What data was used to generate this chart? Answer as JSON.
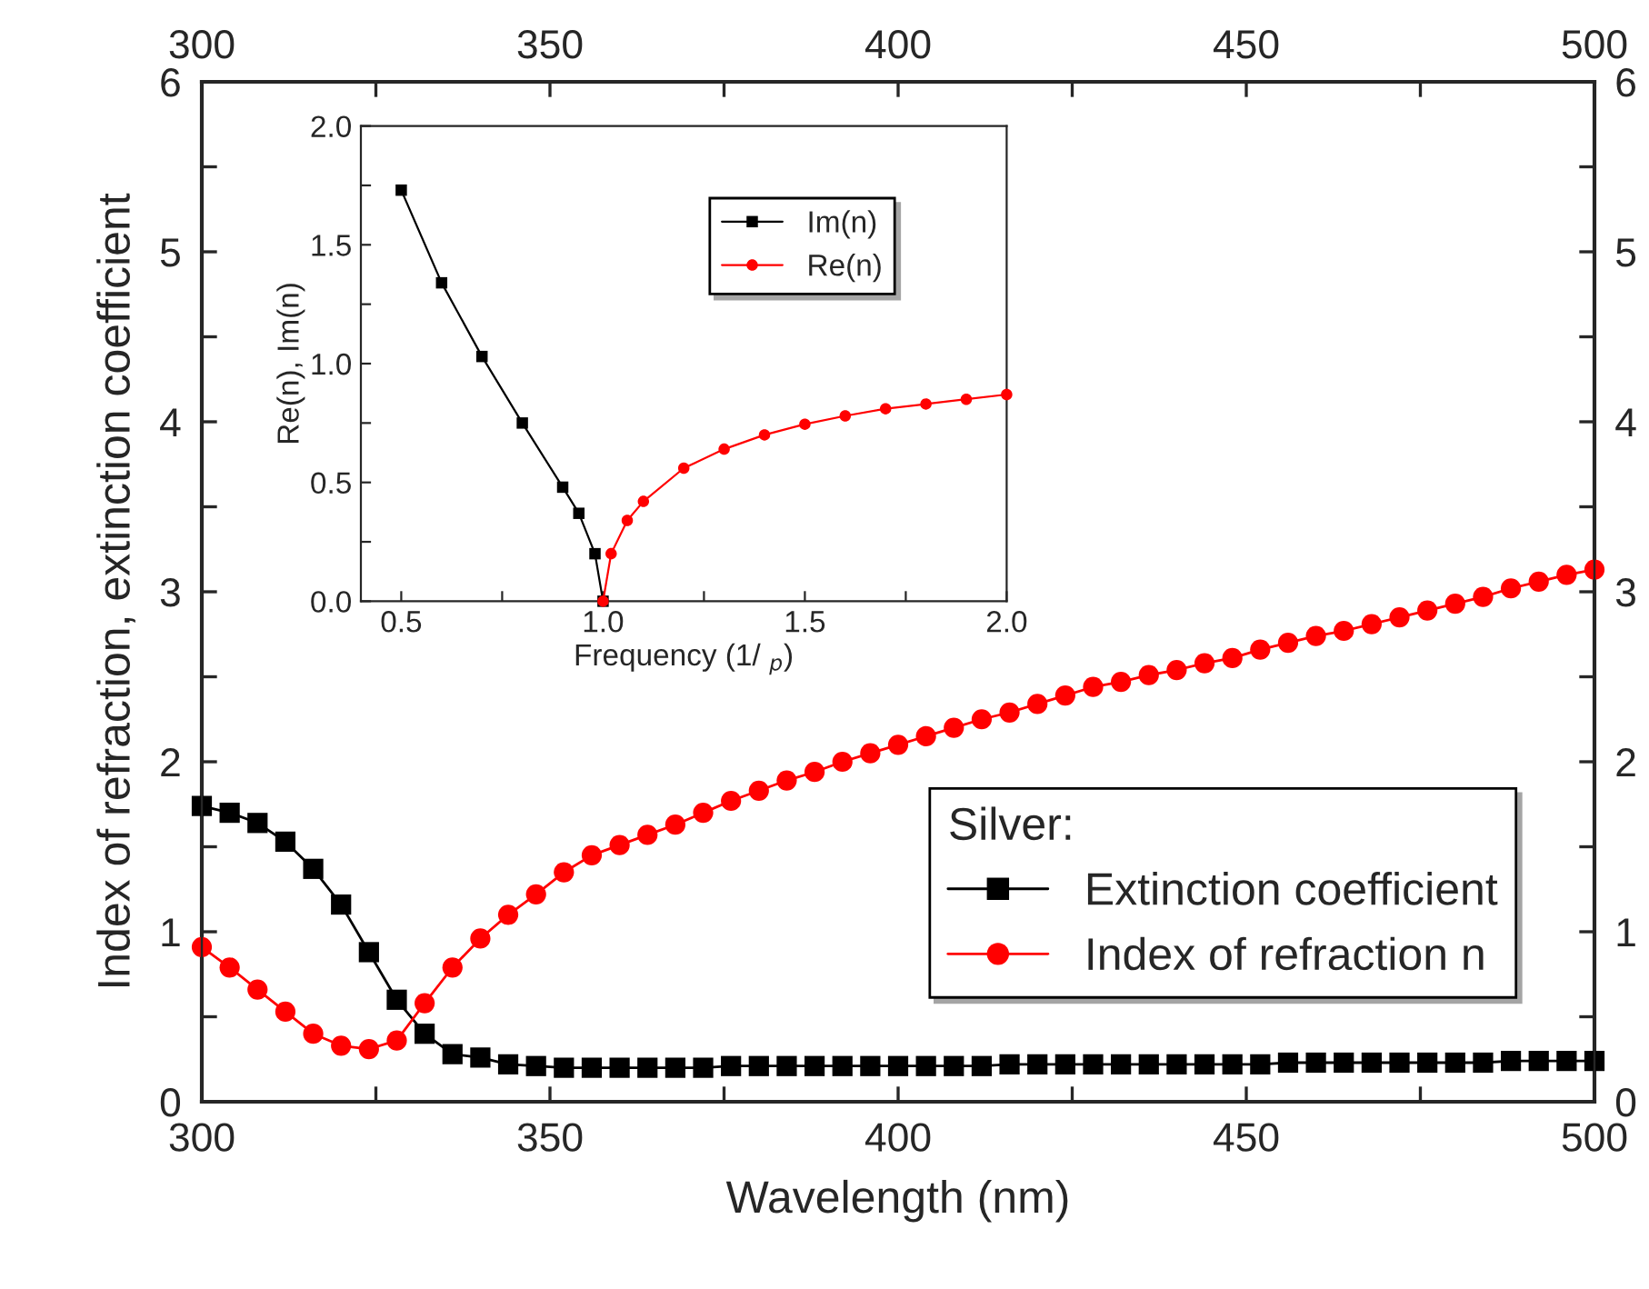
{
  "chart_data": [
    {
      "type": "line",
      "xlabel": "Wavelength (nm)",
      "ylabel": "Index of refraction, extinction coefficient",
      "legend_title": "Silver:",
      "legend": "bottom right",
      "grid": false,
      "x": [
        300,
        304,
        308,
        312,
        316,
        320,
        324,
        328,
        332,
        336,
        340,
        344,
        348,
        352,
        356,
        360,
        364,
        368,
        372,
        376,
        380,
        384,
        388,
        392,
        396,
        400,
        404,
        408,
        412,
        416,
        420,
        424,
        428,
        432,
        436,
        440,
        444,
        448,
        452,
        456,
        460,
        464,
        468,
        472,
        476,
        480,
        484,
        488,
        492,
        496,
        500
      ],
      "series": [
        {
          "name": "Extinction coefficient",
          "color": "#000000",
          "marker": "square",
          "values": [
            1.74,
            1.7,
            1.64,
            1.53,
            1.37,
            1.16,
            0.88,
            0.6,
            0.4,
            0.28,
            0.26,
            0.22,
            0.21,
            0.2,
            0.2,
            0.2,
            0.2,
            0.2,
            0.2,
            0.21,
            0.21,
            0.21,
            0.21,
            0.21,
            0.21,
            0.21,
            0.21,
            0.21,
            0.21,
            0.22,
            0.22,
            0.22,
            0.22,
            0.22,
            0.22,
            0.22,
            0.22,
            0.22,
            0.22,
            0.23,
            0.23,
            0.23,
            0.23,
            0.23,
            0.23,
            0.23,
            0.23,
            0.24,
            0.24,
            0.24,
            0.24
          ]
        },
        {
          "name": "Index of refraction n",
          "color": "#ff0000",
          "marker": "circle",
          "values": [
            0.91,
            0.79,
            0.66,
            0.53,
            0.4,
            0.33,
            0.31,
            0.36,
            0.58,
            0.79,
            0.96,
            1.1,
            1.22,
            1.35,
            1.45,
            1.51,
            1.57,
            1.63,
            1.7,
            1.77,
            1.83,
            1.89,
            1.94,
            2.0,
            2.05,
            2.1,
            2.15,
            2.2,
            2.25,
            2.29,
            2.34,
            2.39,
            2.44,
            2.47,
            2.51,
            2.54,
            2.58,
            2.61,
            2.66,
            2.7,
            2.74,
            2.77,
            2.81,
            2.85,
            2.89,
            2.93,
            2.97,
            3.02,
            3.06,
            3.1,
            3.13
          ]
        }
      ],
      "xlim": [
        300,
        500
      ],
      "xticks": [
        300,
        {
          "value": 325,
          "label": null
        },
        350,
        {
          "value": 375,
          "label": null
        },
        400,
        {
          "value": 425,
          "label": null
        },
        450,
        {
          "value": 475,
          "label": null
        },
        500
      ],
      "x2lim": [
        300,
        500
      ],
      "x2ticks": [
        300,
        {
          "value": 325,
          "label": null
        },
        350,
        {
          "value": 375,
          "label": null
        },
        400,
        {
          "value": 425,
          "label": null
        },
        450,
        {
          "value": 475,
          "label": null
        },
        500
      ],
      "ylim": [
        0,
        6
      ],
      "yticks": [
        0,
        {
          "value": 0.5,
          "label": null
        },
        1,
        {
          "value": 1.5,
          "label": null
        },
        2,
        {
          "value": 2.5,
          "label": null
        },
        3,
        {
          "value": 3.5,
          "label": null
        },
        4,
        {
          "value": 4.5,
          "label": null
        },
        5,
        {
          "value": 5.5,
          "label": null
        },
        6
      ],
      "y2lim": [
        0,
        6
      ],
      "y2ticks": [
        0,
        {
          "value": 0.5,
          "label": null
        },
        1,
        {
          "value": 1.5,
          "label": null
        },
        2,
        {
          "value": 2.5,
          "label": null
        },
        3,
        {
          "value": 3.5,
          "label": null
        },
        4,
        {
          "value": 4.5,
          "label": null
        },
        5,
        {
          "value": 5.5,
          "label": null
        },
        6
      ]
    },
    {
      "type": "line",
      "xlabel": "Frequency (1/ $_{p}$)",
      "ylabel": "Re(n), Im(n)",
      "legend": "top right",
      "grid": false,
      "series": [
        {
          "name": "Im(n)",
          "color": "#000000",
          "marker": "square",
          "x": [
            0.5,
            0.6,
            0.7,
            0.8,
            0.9,
            0.94,
            0.98,
            1.0
          ],
          "values": [
            1.73,
            1.34,
            1.03,
            0.75,
            0.48,
            0.37,
            0.2,
            0.0
          ]
        },
        {
          "name": "Re(n)",
          "color": "#ff0000",
          "marker": "circle",
          "x": [
            1.0,
            1.02,
            1.06,
            1.1,
            1.2,
            1.3,
            1.4,
            1.5,
            1.6,
            1.7,
            1.8,
            1.9,
            2.0
          ],
          "values": [
            0.0,
            0.2,
            0.34,
            0.42,
            0.56,
            0.64,
            0.7,
            0.745,
            0.78,
            0.81,
            0.83,
            0.85,
            0.87
          ]
        }
      ],
      "xlim": [
        0.4,
        2.0
      ],
      "xticks": [
        {
          "value": 0.5,
          "label": "0.5"
        },
        {
          "value": 0.75,
          "label": null
        },
        {
          "value": 1.0,
          "label": "1.0"
        },
        {
          "value": 1.25,
          "label": null
        },
        {
          "value": 1.5,
          "label": "1.5"
        },
        {
          "value": 1.75,
          "label": null
        },
        {
          "value": 2.0,
          "label": "2.0"
        }
      ],
      "ylim": [
        0,
        2.0
      ],
      "yticks": [
        {
          "value": 0,
          "label": "0.0"
        },
        {
          "value": 0.25,
          "label": null
        },
        {
          "value": 0.5,
          "label": "0.5"
        },
        {
          "value": 0.75,
          "label": null
        },
        {
          "value": 1.0,
          "label": "1.0"
        },
        {
          "value": 1.25,
          "label": null
        },
        {
          "value": 1.5,
          "label": "1.5"
        },
        {
          "value": 1.75,
          "label": null
        },
        {
          "value": 2.0,
          "label": "2.0"
        }
      ]
    }
  ]
}
